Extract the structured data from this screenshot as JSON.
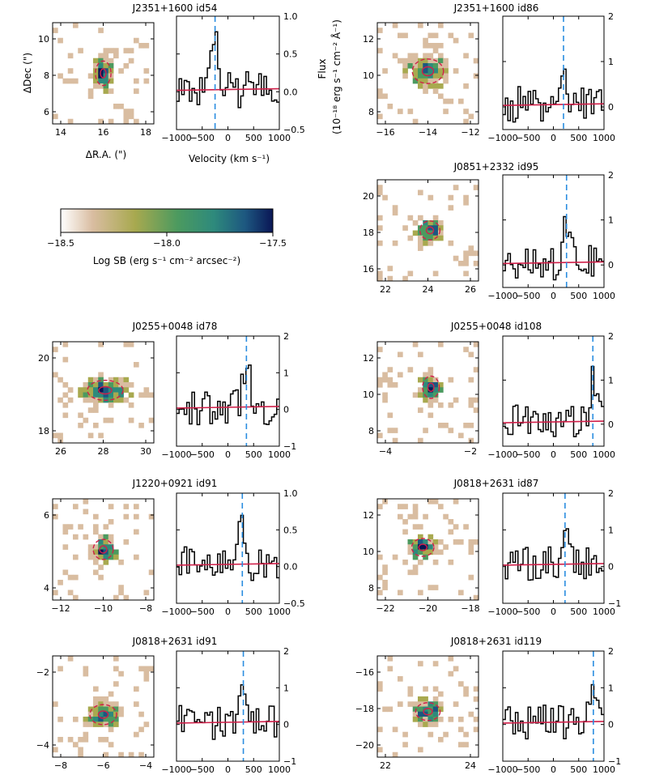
{
  "colors": {
    "line": "#000000",
    "fit": "#d0204a",
    "marker": "#2a8de0",
    "cmap": [
      "#ffffff",
      "#d9bda1",
      "#a8a94f",
      "#4c9a5f",
      "#2e8a7c",
      "#1d5780",
      "#0a1655"
    ]
  },
  "axis_labels": {
    "ddec": "ΔDec (\")",
    "dra": "ΔR.A. (\")",
    "velocity": "Velocity (km s⁻¹)",
    "flux_1": "Flux",
    "flux_2": "(10⁻¹⁸ erg s⁻¹ cm⁻² Å⁻¹)"
  },
  "colorbar": {
    "label": "Log SB (erg s⁻¹ cm⁻² arcsec⁻²)",
    "ticks": [
      "−18.5",
      "−18.0",
      "−17.5"
    ],
    "range": [
      -18.5,
      -17.5
    ]
  },
  "chart_data": [
    {
      "type": "line",
      "title": "J2351+1600 id54",
      "image_xticks": [
        "14",
        "16",
        "18"
      ],
      "image_yticks": [
        "10",
        "8",
        "6"
      ],
      "spec_yticks": [
        "1.0",
        "0.5",
        "0.0",
        "−0.5"
      ],
      "spec_xticks": [
        "−1000",
        "−500",
        "0",
        "500",
        "1000"
      ],
      "spec_ylim": [
        -0.5,
        1.0
      ],
      "line_velocity": -250
    },
    {
      "type": "line",
      "title": "J2351+1600 id86",
      "image_xticks": [
        "−16",
        "−14",
        "−12"
      ],
      "image_yticks": [
        "12",
        "10",
        "8"
      ],
      "spec_yticks": [
        "2",
        "1",
        "0"
      ],
      "spec_xticks": [
        "−1000",
        "−500",
        "0",
        "500",
        "1000"
      ],
      "spec_ylim": [
        -0.5,
        2.0
      ],
      "line_velocity": 200
    },
    {
      "type": "line",
      "title": "J0851+2332 id95",
      "image_xticks": [
        "22",
        "24",
        "26"
      ],
      "image_yticks": [
        "20",
        "18",
        "16"
      ],
      "spec_yticks": [
        "2",
        "1",
        "0"
      ],
      "spec_xticks": [
        "−1000",
        "−500",
        "0",
        "500",
        "1000"
      ],
      "spec_ylim": [
        -0.5,
        2.0
      ],
      "line_velocity": 260
    },
    {
      "type": "line",
      "title": "J0255+0048 id78",
      "image_xticks": [
        "26",
        "28",
        "30"
      ],
      "image_yticks": [
        "20",
        "18"
      ],
      "spec_yticks": [
        "2",
        "1",
        "0",
        "−1"
      ],
      "spec_xticks": [
        "−1000",
        "−500",
        "0",
        "500",
        "1000"
      ],
      "spec_ylim": [
        -1,
        2
      ],
      "line_velocity": 360
    },
    {
      "type": "line",
      "title": "J0255+0048 id108",
      "image_xticks": [
        "−4",
        "−2"
      ],
      "image_yticks": [
        "12",
        "10",
        "8"
      ],
      "spec_yticks": [
        "2",
        "1",
        "0"
      ],
      "spec_xticks": [
        "−1000",
        "−500",
        "0",
        "500",
        "1000"
      ],
      "spec_ylim": [
        -0.5,
        2.0
      ],
      "line_velocity": 780
    },
    {
      "type": "line",
      "title": "J1220+0921 id91",
      "image_xticks": [
        "−12",
        "−10",
        "−8"
      ],
      "image_yticks": [
        "6",
        "4"
      ],
      "spec_yticks": [
        "1.0",
        "0.5",
        "0.0",
        "−0.5"
      ],
      "spec_xticks": [
        "−1000",
        "−500",
        "0",
        "500",
        "1000"
      ],
      "spec_ylim": [
        -0.5,
        1.0
      ],
      "line_velocity": 280
    },
    {
      "type": "line",
      "title": "J0818+2631 id87",
      "image_xticks": [
        "−22",
        "−20",
        "−18"
      ],
      "image_yticks": [
        "12",
        "10",
        "8"
      ],
      "spec_yticks": [
        "2",
        "1",
        "0",
        "−1"
      ],
      "spec_xticks": [
        "−1000",
        "−500",
        "0",
        "500",
        "1000"
      ],
      "spec_ylim": [
        -1,
        2
      ],
      "line_velocity": 230
    },
    {
      "type": "line",
      "title": "J0818+2631 id91",
      "image_xticks": [
        "−8",
        "−6",
        "−4"
      ],
      "image_yticks": [
        "−2",
        "−4"
      ],
      "spec_yticks": [
        "2",
        "1",
        "0",
        "−1"
      ],
      "spec_xticks": [
        "−1000",
        "−500",
        "0",
        "500",
        "1000"
      ],
      "spec_ylim": [
        -1,
        2
      ],
      "line_velocity": 300
    },
    {
      "type": "line",
      "title": "J0818+2631 id119",
      "image_xticks": [
        "22",
        "24"
      ],
      "image_yticks": [
        "−16",
        "−18",
        "−20"
      ],
      "spec_yticks": [
        "2",
        "1",
        "0",
        "−1"
      ],
      "spec_xticks": [
        "−1000",
        "−500",
        "0",
        "500",
        "1000"
      ],
      "spec_ylim": [
        -1,
        2
      ],
      "line_velocity": 790
    }
  ]
}
